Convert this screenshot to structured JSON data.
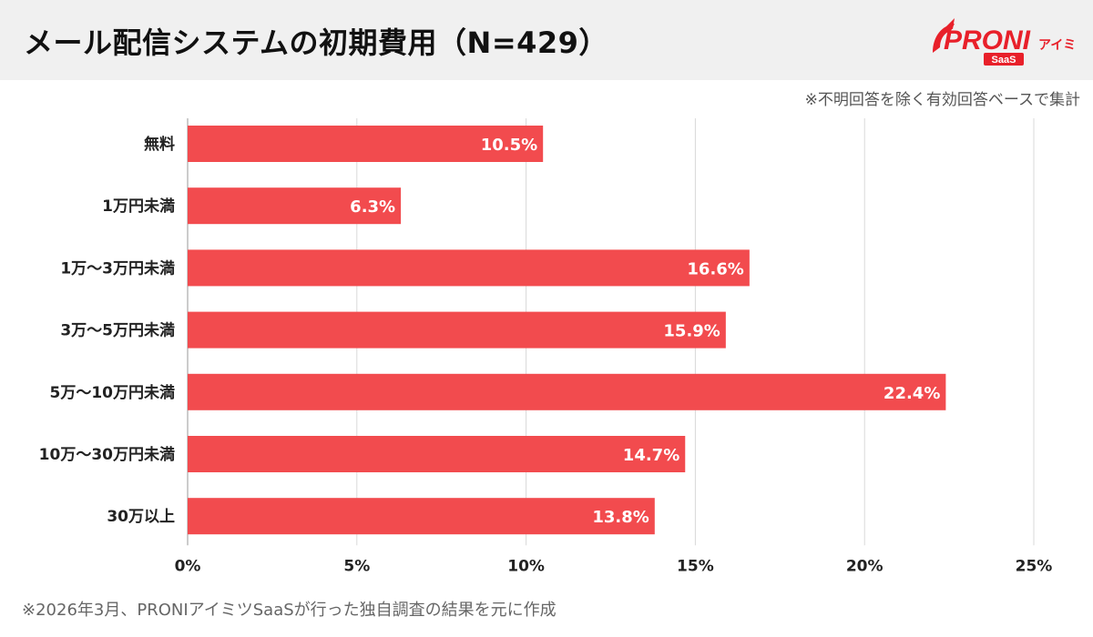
{
  "header": {
    "title": "メール配信システムの初期費用（N=429）",
    "logo_text": "PRONI",
    "logo_sub": "アイミツ",
    "logo_badge": "SaaS"
  },
  "note": "※不明回答を除く有効回答ベースで集計",
  "footnote": "※2026年3月、PRONIアイミツSaaSが行った独自調査の結果を元に作成",
  "colors": {
    "bar": "#f24b4e",
    "brand": "#e8202a",
    "grid": "#d9d9d9",
    "header_bg": "#f0f0f0"
  },
  "chart_data": {
    "type": "bar",
    "orientation": "horizontal",
    "categories": [
      "無料",
      "1万円未満",
      "1万〜3万円未満",
      "3万〜5万円未満",
      "5万〜10万円未満",
      "10万〜30万円未満",
      "30万以上"
    ],
    "values": [
      10.5,
      6.3,
      16.6,
      15.9,
      22.4,
      14.7,
      13.8
    ],
    "value_labels": [
      "10.5%",
      "6.3%",
      "16.6%",
      "15.9%",
      "22.4%",
      "14.7%",
      "13.8%"
    ],
    "xlim": [
      0,
      25
    ],
    "xticks": [
      0,
      5,
      10,
      15,
      20,
      25
    ],
    "xtick_labels": [
      "0%",
      "5%",
      "10%",
      "15%",
      "20%",
      "25%"
    ],
    "grid": true,
    "legend": "none"
  }
}
